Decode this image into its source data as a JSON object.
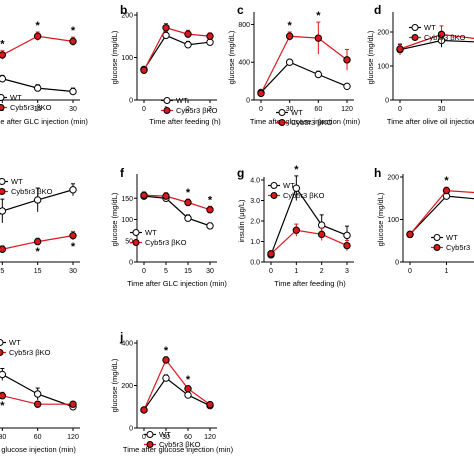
{
  "colors": {
    "wt": "#000000",
    "ko": "#e0161e",
    "ko_fill": "#d7191c"
  },
  "chart_data": [
    {
      "panel": "a",
      "type": "line",
      "xlabel": "Time after GLC injection (min)",
      "ylabel": "",
      "x": [
        0,
        5,
        15,
        30
      ],
      "xticks": [
        "0",
        "5",
        "15",
        "30"
      ],
      "yticks": [],
      "ylim": [
        0,
        100
      ],
      "series": [
        {
          "name": "WT",
          "values": [
            42,
            25,
            14,
            10
          ]
        },
        {
          "name": "Cyb5r3 βKO",
          "values": [
            44,
            53,
            75,
            69
          ]
        }
      ],
      "errors": [
        [
          4,
          4,
          4,
          4
        ],
        [
          4,
          5,
          5,
          5
        ]
      ],
      "stars": [
        "",
        "*",
        "*",
        "*"
      ],
      "legend": [
        "WT",
        "Cyb5r3 βKO"
      ]
    },
    {
      "panel": "b",
      "type": "line",
      "xlabel": "Time after feeding (h)",
      "ylabel": "glucose (mg/dL)",
      "x": [
        0,
        1,
        2,
        3
      ],
      "xticks": [
        "0",
        "1",
        "2",
        "3"
      ],
      "yticks": [
        "0",
        "100",
        "200"
      ],
      "ylim": [
        0,
        200
      ],
      "series": [
        {
          "name": "WT",
          "values": [
            72,
            152,
            130,
            136
          ]
        },
        {
          "name": "Cyb5r3 βKO",
          "values": [
            70,
            170,
            155,
            150
          ]
        }
      ],
      "errors": [
        [
          6,
          8,
          8,
          7
        ],
        [
          6,
          10,
          9,
          8
        ]
      ],
      "stars": [],
      "legend": [
        "WT",
        "Cyb5r3 βKO"
      ]
    },
    {
      "panel": "c",
      "type": "line",
      "xlabel": "Time after glucose injection (min)",
      "ylabel": "glucose (mg/dL)",
      "x": [
        0,
        30,
        60,
        120
      ],
      "xticks": [
        "0",
        "30",
        "60",
        "120"
      ],
      "yticks": [
        "0",
        "400",
        "800"
      ],
      "ylim": [
        0,
        900
      ],
      "series": [
        {
          "name": "WT",
          "values": [
            80,
            400,
            270,
            145
          ]
        },
        {
          "name": "Cyb5r3 βKO",
          "values": [
            70,
            675,
            655,
            425
          ]
        }
      ],
      "errors": [
        [
          10,
          30,
          35,
          15
        ],
        [
          10,
          45,
          170,
          110
        ]
      ],
      "stars": [
        "",
        "*",
        "*",
        ""
      ],
      "legend": [
        "WT",
        "Cyb5r3 βKO"
      ]
    },
    {
      "panel": "d",
      "type": "line",
      "xlabel": "Time after olive oil injection",
      "ylabel": "glucose (mg/dL)",
      "x": [
        0,
        30,
        60
      ],
      "xticks": [
        "0",
        "30",
        "60"
      ],
      "yticks": [
        "0",
        "100",
        "200"
      ],
      "ylim": [
        0,
        250
      ],
      "series": [
        {
          "name": "WT",
          "values": [
            148,
            175,
            170
          ]
        },
        {
          "name": "Cyb5r3 βKO",
          "values": [
            150,
            193,
            178
          ]
        }
      ],
      "errors": [
        [
          15,
          20,
          15
        ],
        [
          15,
          25,
          18
        ]
      ],
      "stars": [],
      "legend": [
        "WT",
        "Cyb5r3 βKO"
      ]
    },
    {
      "panel": "e",
      "type": "line",
      "xlabel": "",
      "ylabel": "",
      "x": [
        0,
        5,
        15,
        30
      ],
      "xticks": [
        "0",
        "5",
        "15",
        "30"
      ],
      "yticks": [],
      "ylim": [
        0,
        100
      ],
      "series": [
        {
          "name": "WT",
          "values": [
            10,
            60,
            73,
            85
          ]
        },
        {
          "name": "Cyb5r3 βKO",
          "values": [
            10,
            15,
            24,
            31
          ]
        }
      ],
      "errors": [
        [
          4,
          14,
          14,
          7
        ],
        [
          4,
          4,
          4,
          5
        ]
      ],
      "stars": [
        "",
        "",
        "*",
        "*"
      ],
      "legend": [
        "WT",
        "Cyb5r3 βKO"
      ]
    },
    {
      "panel": "f",
      "type": "line",
      "xlabel": "Time after GLC injection (min)",
      "ylabel": "glucose (mg/dL)",
      "x": [
        0,
        5,
        15,
        30
      ],
      "xticks": [
        "0",
        "5",
        "15",
        "30"
      ],
      "yticks": [
        "0",
        "50",
        "100",
        "150"
      ],
      "ylim": [
        0,
        200
      ],
      "series": [
        {
          "name": "WT",
          "values": [
            155,
            150,
            103,
            85
          ]
        },
        {
          "name": "Cyb5r3 βKO",
          "values": [
            157,
            155,
            140,
            123
          ]
        }
      ],
      "errors": [
        [
          8,
          8,
          8,
          6
        ],
        [
          8,
          8,
          8,
          8
        ]
      ],
      "stars": [
        "",
        "",
        "*",
        "*"
      ],
      "legend": [
        "WT",
        "Cyb5r3 βKO"
      ]
    },
    {
      "panel": "g",
      "type": "line",
      "xlabel": "Time after feeding (h)",
      "ylabel": "insulin (μg/L)",
      "x": [
        0,
        1,
        2,
        3
      ],
      "xticks": [
        "0",
        "1",
        "2",
        "3"
      ],
      "yticks": [
        "0.0",
        "1.0",
        "2.0",
        "3.0",
        "4.0"
      ],
      "ylim": [
        0,
        4
      ],
      "series": [
        {
          "name": "WT",
          "values": [
            0.35,
            3.6,
            1.8,
            1.3
          ]
        },
        {
          "name": "Cyb5r3 βKO",
          "values": [
            0.4,
            1.55,
            1.35,
            0.8
          ]
        }
      ],
      "errors": [
        [
          0.15,
          0.6,
          0.5,
          0.45
        ],
        [
          0.15,
          0.3,
          0.3,
          0.25
        ]
      ],
      "stars": [
        "",
        "*",
        "",
        ""
      ],
      "legend": [
        "WT",
        "Cyb5r3 βKO"
      ]
    },
    {
      "panel": "h",
      "type": "line",
      "xlabel": "",
      "ylabel": "glucose (mg/dL)",
      "x": [
        0,
        1,
        2
      ],
      "xticks": [
        "0",
        "1",
        "2"
      ],
      "yticks": [
        "0",
        "100",
        "200"
      ],
      "ylim": [
        0,
        200
      ],
      "series": [
        {
          "name": "WT",
          "values": [
            65,
            155,
            147
          ]
        },
        {
          "name": "Cyb5r3 βKO",
          "values": [
            65,
            168,
            162
          ]
        }
      ],
      "errors": [
        [
          6,
          8,
          6
        ],
        [
          6,
          8,
          6
        ]
      ],
      "stars": [
        "",
        "*",
        "*"
      ],
      "legend": [
        "WT",
        "Cyb5r3"
      ]
    },
    {
      "panel": "i",
      "type": "line",
      "xlabel": "after glucose injection (min)",
      "ylabel": "",
      "x": [
        0,
        30,
        60,
        120
      ],
      "xticks": [
        "0",
        "30",
        "60",
        "120"
      ],
      "yticks": [],
      "ylim": [
        0,
        100
      ],
      "series": [
        {
          "name": "WT",
          "values": [
            30,
            63,
            40,
            25
          ]
        },
        {
          "name": "Cyb5r3 βKO",
          "values": [
            28,
            38,
            28,
            28
          ]
        }
      ],
      "errors": [
        [
          4,
          7,
          7,
          4
        ],
        [
          4,
          4,
          3,
          3
        ]
      ],
      "stars": [
        "",
        "*",
        "",
        ""
      ],
      "legend": [
        "WT",
        "Cyb5r3 βKO"
      ]
    },
    {
      "panel": "j",
      "type": "line",
      "xlabel": "Time after glucose injection (min)",
      "ylabel": "glucose (mg/dL)",
      "x": [
        0,
        30,
        60,
        120
      ],
      "xticks": [
        "0",
        "30",
        "60",
        "120"
      ],
      "yticks": [
        "0",
        "200",
        "400"
      ],
      "ylim": [
        0,
        400
      ],
      "series": [
        {
          "name": "WT",
          "values": [
            85,
            235,
            155,
            105
          ]
        },
        {
          "name": "Cyb5r3 βKO",
          "values": [
            85,
            320,
            185,
            110
          ]
        }
      ],
      "errors": [
        [
          8,
          15,
          12,
          8
        ],
        [
          8,
          15,
          12,
          8
        ]
      ],
      "stars": [
        "",
        "*",
        "*",
        ""
      ],
      "legend": [
        "WT",
        "Cyb5r3 βKO"
      ]
    }
  ]
}
